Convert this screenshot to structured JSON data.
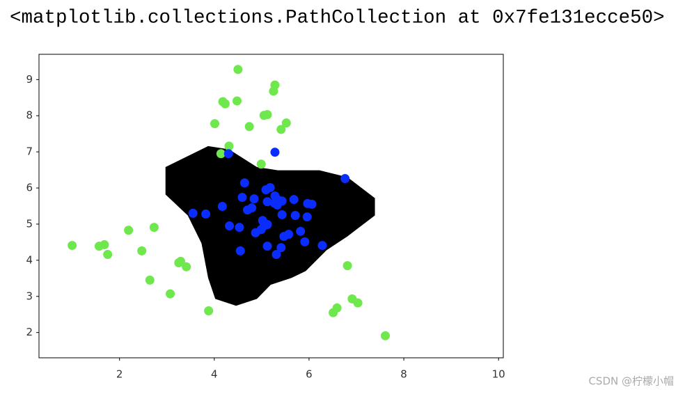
{
  "title": "<matplotlib.collections.PathCollection at 0x7fe131ecce50>",
  "watermark": "CSDN @柠檬小帽",
  "chart_data": {
    "type": "scatter",
    "xlim": [
      0.3,
      10.1
    ],
    "ylim": [
      1.3,
      9.7
    ],
    "xticks": [
      2,
      4,
      6,
      8,
      10
    ],
    "yticks": [
      2,
      3,
      4,
      5,
      6,
      7,
      8,
      9
    ],
    "region": {
      "color": "#000000",
      "x": [
        2.97,
        3.87,
        4.31,
        4.9,
        5.34,
        6.22,
        6.81,
        7.39,
        7.39,
        6.81,
        6.37,
        5.93,
        5.63,
        5.19,
        4.9,
        4.46,
        4.02,
        3.87,
        3.73,
        3.44,
        2.97
      ],
      "y": [
        6.58,
        7.16,
        7.07,
        6.58,
        6.49,
        6.49,
        6.3,
        5.72,
        5.24,
        4.66,
        4.28,
        3.7,
        3.51,
        3.32,
        2.93,
        2.74,
        2.93,
        3.51,
        4.47,
        5.24,
        5.82
      ]
    },
    "series": [
      {
        "color": "#6ee84c",
        "x": [
          1.0,
          1.57,
          1.68,
          1.75,
          2.19,
          2.73,
          2.47,
          2.64,
          3.25,
          3.29,
          3.41,
          3.07,
          3.88,
          4.5,
          5.28,
          5.25,
          4.18,
          4.23,
          4.48,
          5.05,
          5.12,
          4.01,
          4.74,
          5.52,
          5.41,
          4.31,
          4.14,
          4.99,
          6.81,
          6.91,
          7.03,
          6.51,
          6.59,
          7.61
        ],
        "y": [
          4.41,
          4.39,
          4.43,
          4.16,
          4.83,
          4.91,
          4.26,
          3.45,
          3.93,
          3.97,
          3.82,
          3.07,
          2.6,
          9.28,
          8.85,
          8.68,
          8.39,
          8.33,
          8.41,
          8.01,
          8.03,
          7.78,
          7.7,
          7.8,
          7.62,
          7.16,
          6.95,
          6.66,
          3.85,
          2.93,
          2.82,
          2.55,
          2.68,
          1.91
        ]
      },
      {
        "color": "#0a2cff",
        "x": [
          5.28,
          4.3,
          6.76,
          4.64,
          3.55,
          3.82,
          4.17,
          4.59,
          4.84,
          4.7,
          4.79,
          5.09,
          5.18,
          5.12,
          5.28,
          5.27,
          5.36,
          5.43,
          5.33,
          5.68,
          5.43,
          5.71,
          5.97,
          6.06,
          5.96,
          4.32,
          4.53,
          5.02,
          5.05,
          5.12,
          4.99,
          4.87,
          5.57,
          5.47,
          5.82,
          5.91,
          6.28,
          5.12,
          5.41,
          5.31,
          4.55
        ],
        "y": [
          6.99,
          6.95,
          6.26,
          6.14,
          5.3,
          5.28,
          5.49,
          5.74,
          5.7,
          5.39,
          5.45,
          5.95,
          6.01,
          5.62,
          5.78,
          5.58,
          5.66,
          5.64,
          5.53,
          5.68,
          5.26,
          5.24,
          5.57,
          5.55,
          5.2,
          4.95,
          4.91,
          5.1,
          4.95,
          4.99,
          4.85,
          4.76,
          4.72,
          4.66,
          4.8,
          4.51,
          4.41,
          4.39,
          4.35,
          4.16,
          4.26
        ]
      }
    ]
  }
}
